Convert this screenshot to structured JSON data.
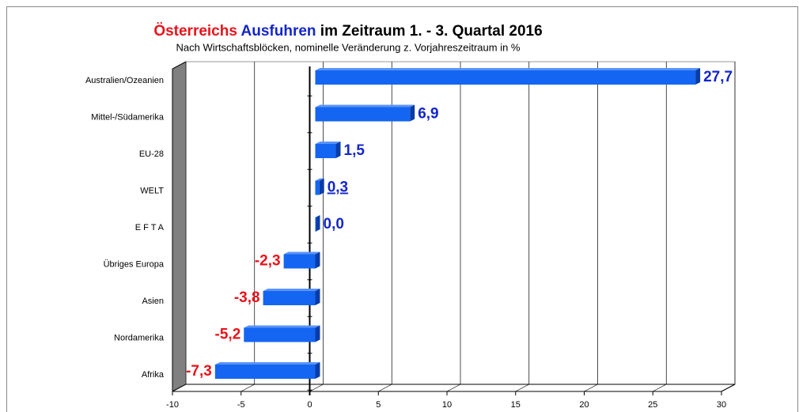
{
  "chart_data": {
    "type": "hbar",
    "title": [
      "Österreichs",
      "Ausfuhren",
      "im Zeitraum 1. - 3. Quartal 2016"
    ],
    "title_colors": [
      "#e8131b",
      "#1426c8",
      "#000000"
    ],
    "subtitle": "Nach Wirtschaftsblöcken, nominelle Veränderung z. Vorjahreszeitraum in %",
    "categories": [
      "Australien/Ozeanien",
      "Mittel-/Südamerika",
      "EU-28",
      "WELT",
      "E F T A",
      "Übriges Europa",
      "Asien",
      "Nordamerika",
      "Afrika"
    ],
    "values": [
      27.7,
      6.9,
      1.5,
      0.3,
      0.0,
      -2.3,
      -3.8,
      -5.2,
      -7.3
    ],
    "value_labels": [
      "27,7",
      "6,9",
      "1,5",
      "0,3",
      "0,0",
      "-2,3",
      "-3,8",
      "-5,2",
      "-7,3"
    ],
    "value_label_underline": [
      false,
      false,
      false,
      true,
      false,
      false,
      false,
      false,
      false
    ],
    "color": "#1466f2",
    "positive_label_color": "#1426c8",
    "negative_label_color": "#e8131b",
    "xlim": [
      -10,
      30
    ],
    "xticks": [
      -10,
      -5,
      0,
      5,
      10,
      15,
      20,
      25,
      30
    ],
    "grid": true
  }
}
